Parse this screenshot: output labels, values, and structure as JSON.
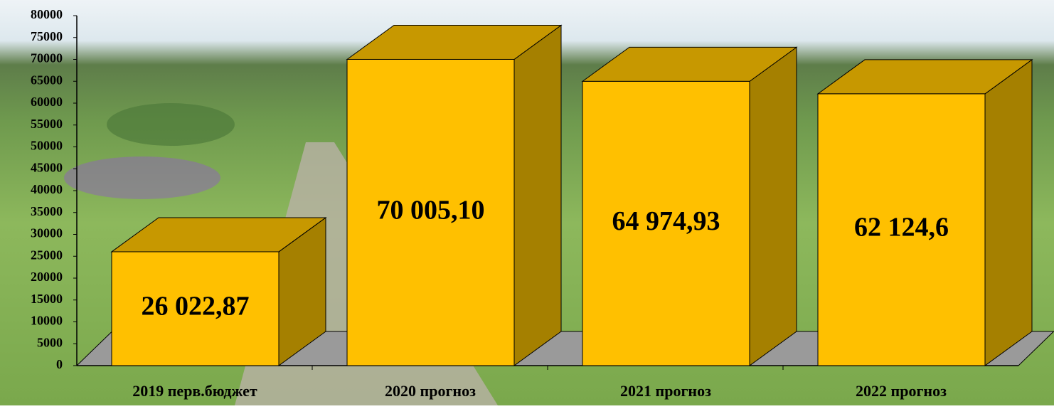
{
  "chart_data": {
    "type": "bar3d",
    "categories": [
      "2019 перв.бюджет",
      "2020 прогноз",
      "2021 прогноз",
      "2022 прогноз"
    ],
    "values": [
      26022.87,
      70005.1,
      64974.93,
      62124.6
    ],
    "value_labels": [
      "26 022,87",
      "70 005,10",
      "64 974,93",
      "62 124,6"
    ],
    "color": "#ffc000",
    "ylim": [
      0,
      80000
    ],
    "yticks": [
      0,
      5000,
      10000,
      15000,
      20000,
      25000,
      30000,
      35000,
      40000,
      45000,
      50000,
      55000,
      60000,
      65000,
      70000,
      75000,
      80000
    ]
  }
}
